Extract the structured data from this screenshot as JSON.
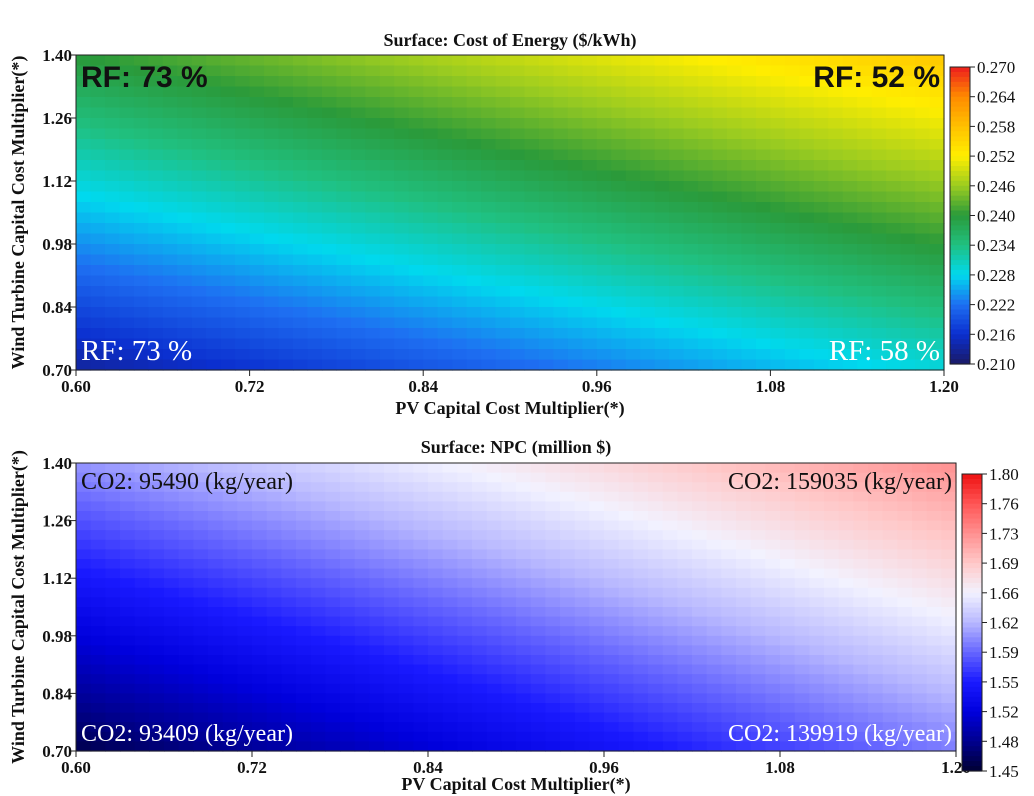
{
  "chart_data": [
    {
      "type": "heatmap",
      "title": "Surface: Cost of Energy ($/kWh)",
      "xlabel": "PV Capital Cost Multiplier(*)",
      "ylabel": "Wind Turbine Capital Cost Multiplier(*)",
      "xlim": [
        0.6,
        1.2
      ],
      "ylim": [
        0.7,
        1.4
      ],
      "x_ticks": [
        "0.60",
        "0.72",
        "0.84",
        "0.96",
        "1.08",
        "1.20"
      ],
      "y_ticks": [
        "0.70",
        "0.84",
        "0.98",
        "1.12",
        "1.26",
        "1.40"
      ],
      "colorbar": {
        "min": 0.21,
        "max": 0.27,
        "ticks": [
          "0.210",
          "0.216",
          "0.222",
          "0.228",
          "0.234",
          "0.240",
          "0.246",
          "0.252",
          "0.258",
          "0.264",
          "0.270"
        ],
        "colors": [
          "#1a1a66",
          "#0b2fcf",
          "#1e6ff2",
          "#00d9ee",
          "#20c080",
          "#2a9a3a",
          "#9ccc20",
          "#ffee00",
          "#ffc000",
          "#ff8a00",
          "#ee1d1d"
        ]
      },
      "corner_values": {
        "x0y0": 0.213,
        "x1y0": 0.229,
        "x0y1": 0.24,
        "x1y1": 0.257
      },
      "annotations": [
        {
          "text": "RF: 73 %",
          "x": 0.6,
          "y": 1.4,
          "corner": "top-left",
          "color": "#111111",
          "style": "bold"
        },
        {
          "text": "RF: 52 %",
          "x": 1.2,
          "y": 1.4,
          "corner": "top-right",
          "color": "#111111",
          "style": "bold"
        },
        {
          "text": "RF: 73 %",
          "x": 0.6,
          "y": 0.7,
          "corner": "bottom-left",
          "color": "#ffffff",
          "style": "normal"
        },
        {
          "text": "RF: 58 %",
          "x": 1.2,
          "y": 0.7,
          "corner": "bottom-right",
          "color": "#ffffff",
          "style": "normal"
        }
      ]
    },
    {
      "type": "heatmap",
      "title": "Surface: NPC (million $)",
      "xlabel": "PV Capital Cost Multiplier(*)",
      "ylabel": "Wind Turbine Capital Cost Multiplier(*)",
      "xlim": [
        0.6,
        1.2
      ],
      "ylim": [
        0.7,
        1.4
      ],
      "x_ticks": [
        "0.60",
        "0.72",
        "0.84",
        "0.96",
        "1.08",
        "1.20"
      ],
      "y_ticks": [
        "0.70",
        "0.84",
        "0.98",
        "1.12",
        "1.26",
        "1.40"
      ],
      "colorbar": {
        "min": 1.45,
        "max": 1.8,
        "ticks": [
          "1.45",
          "1.48",
          "1.52",
          "1.55",
          "1.59",
          "1.62",
          "1.66",
          "1.69",
          "1.73",
          "1.76",
          "1.80"
        ],
        "colors": [
          "#000033",
          "#000090",
          "#0000dd",
          "#1a1aff",
          "#6666ff",
          "#b8b8ff",
          "#f2f2ff",
          "#ffc8c8",
          "#ff9090",
          "#ff5555",
          "#ee1111"
        ]
      },
      "corner_values": {
        "x0y0": 1.46,
        "x1y0": 1.6,
        "x0y1": 1.61,
        "x1y1": 1.73
      },
      "annotations": [
        {
          "text": "CO2: 95490 (kg/year)",
          "x": 0.6,
          "y": 1.4,
          "corner": "top-left",
          "color": "#111111",
          "style": "normal"
        },
        {
          "text": "CO2: 159035 (kg/year)",
          "x": 1.2,
          "y": 1.4,
          "corner": "top-right",
          "color": "#111111",
          "style": "normal"
        },
        {
          "text": "CO2: 93409 (kg/year)",
          "x": 0.6,
          "y": 0.7,
          "corner": "bottom-left",
          "color": "#ffffff",
          "style": "normal"
        },
        {
          "text": "CO2: 139919 (kg/year)",
          "x": 1.2,
          "y": 0.7,
          "corner": "bottom-right",
          "color": "#ffffff",
          "style": "normal"
        }
      ]
    }
  ]
}
